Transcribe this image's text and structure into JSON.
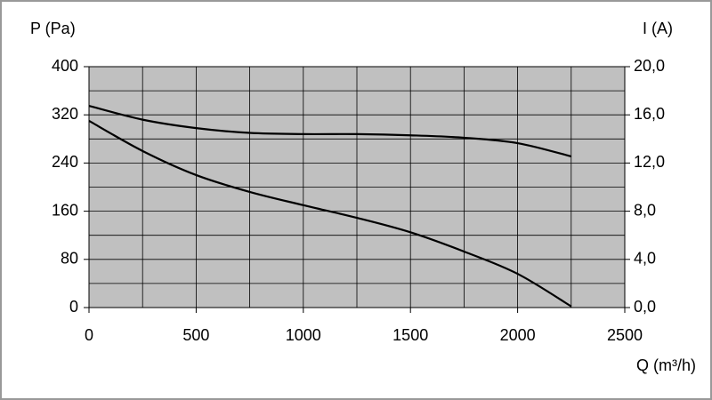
{
  "chart_data": {
    "type": "line",
    "y_label": "P (Pa)",
    "y2_label": "I (A)",
    "x_label": "Q (m³/h)",
    "x": [
      0,
      250,
      500,
      750,
      1000,
      1250,
      1500,
      1750,
      2000,
      2250
    ],
    "series": [
      {
        "color": "#000000",
        "values": [
          310,
          260,
          220,
          192,
          170,
          149,
          125,
          93,
          56,
          2
        ]
      },
      {
        "color": "#000000",
        "axis": "y2",
        "values": [
          16.75,
          15.6,
          14.9,
          14.5,
          14.4,
          14.4,
          14.3,
          14.1,
          13.65,
          12.55
        ]
      }
    ],
    "xlim": [
      0,
      2500
    ],
    "xticks": [
      0,
      500,
      1000,
      1500,
      2000,
      2500
    ],
    "xminor": [
      250,
      750,
      1250,
      1750,
      2250
    ],
    "ylim": [
      0,
      400
    ],
    "yticks": [
      0,
      80,
      160,
      240,
      320,
      400
    ],
    "yminor": [
      40,
      120,
      200,
      280,
      360
    ],
    "y2lim": [
      0,
      20
    ],
    "y2ticks": [
      {
        "value": 0,
        "label": "0,0"
      },
      {
        "value": 4,
        "label": "4,0"
      },
      {
        "value": 8,
        "label": "8,0"
      },
      {
        "value": 12,
        "label": "12,0"
      },
      {
        "value": 16,
        "label": "16,0"
      },
      {
        "value": 20,
        "label": "20,0"
      }
    ],
    "grid": true,
    "plot_background": "#c0c0c0"
  }
}
